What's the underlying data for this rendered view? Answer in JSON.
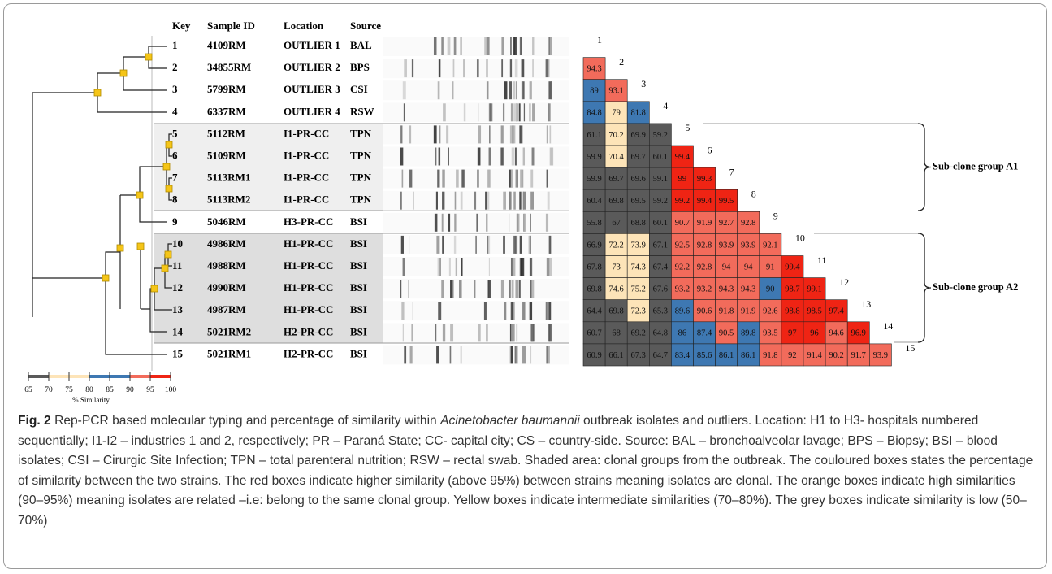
{
  "table": {
    "headers": [
      "Key",
      "Sample ID",
      "Location",
      "Source"
    ],
    "rows": [
      [
        "1",
        "4109RM",
        "OUTLIER 1",
        "BAL"
      ],
      [
        "2",
        "34855RM",
        "OUTLIER 2",
        "BPS"
      ],
      [
        "3",
        "5799RM",
        "OUTLIER 3",
        "CSI"
      ],
      [
        "4",
        "6337RM",
        "OUTLIER 4",
        "RSW"
      ],
      [
        "5",
        "5112RM",
        "I1-PR-CC",
        "TPN"
      ],
      [
        "6",
        "5109RM",
        "I1-PR-CC",
        "TPN"
      ],
      [
        "7",
        "5113RM1",
        "I1-PR-CC",
        "TPN"
      ],
      [
        "8",
        "5113RM2",
        "I1-PR-CC",
        "TPN"
      ],
      [
        "9",
        "5046RM",
        "H3-PR-CC",
        "BSI"
      ],
      [
        "10",
        "4986RM",
        "H1-PR-CC",
        "BSI"
      ],
      [
        "11",
        "4988RM",
        "H1-PR-CC",
        "BSI"
      ],
      [
        "12",
        "4990RM",
        "H1-PR-CC",
        "BSI"
      ],
      [
        "13",
        "4987RM",
        "H1-PR-CC",
        "BSI"
      ],
      [
        "14",
        "5021RM2",
        "H2-PR-CC",
        "BSI"
      ],
      [
        "15",
        "5021RM1",
        "H2-PR-CC",
        "BSI"
      ]
    ]
  },
  "similarity": {
    "rows": [
      [
        94.3
      ],
      [
        89,
        93.1
      ],
      [
        84.8,
        79,
        81.8
      ],
      [
        61.1,
        70.2,
        69.9,
        59.2
      ],
      [
        59.9,
        70.4,
        69.7,
        60.1,
        99.4
      ],
      [
        59.9,
        69.7,
        69.6,
        59.1,
        99,
        99.3
      ],
      [
        60.4,
        69.8,
        69.5,
        59.2,
        99.2,
        99.4,
        99.5
      ],
      [
        55.8,
        67,
        68.8,
        60.1,
        90.7,
        91.9,
        92.7,
        92.8
      ],
      [
        66.9,
        72.2,
        73.9,
        67.1,
        92.5,
        92.8,
        93.9,
        93.9,
        92.1
      ],
      [
        67.8,
        73,
        74.3,
        67.4,
        92.2,
        92.8,
        94,
        94,
        91,
        99.4
      ],
      [
        69.8,
        74.6,
        75.2,
        67.6,
        93.2,
        93.2,
        94.3,
        94.3,
        90,
        98.7,
        99.1
      ],
      [
        64.4,
        69.8,
        72.3,
        65.3,
        89.6,
        90.6,
        91.8,
        91.9,
        92.6,
        98.8,
        98.5,
        97.4
      ],
      [
        60.7,
        68,
        69.2,
        64.8,
        86,
        87.4,
        90.5,
        89.8,
        93.5,
        97,
        96,
        94.6,
        96.9
      ],
      [
        60.9,
        66.1,
        67.3,
        64.7,
        83.4,
        85.6,
        86.1,
        86.1,
        91.8,
        92,
        91.4,
        90.2,
        91.7,
        93.9
      ]
    ]
  },
  "groups": [
    "Sub-clone group A1",
    "Sub-clone group A2"
  ],
  "scale": {
    "ticks": [
      65,
      70,
      75,
      80,
      85,
      90,
      95,
      100
    ],
    "colors": [
      "#5a5a5a",
      "#fde4b8",
      "#fde4b8",
      "#3e78b2",
      "#3e78b2",
      "#f26b5b",
      "#ef2414"
    ],
    "label": "% Similarity"
  },
  "caption": {
    "label": "Fig. 2",
    "before": "Rep-PCR based molecular typing and percentage of similarity within ",
    "species": "Acinetobacter baumannii",
    "after": " outbreak isolates and outliers. Location: H1 to H3- hospitals numbered sequentially; I1-I2 – industries 1 and 2, respectively; PR – Paraná State; CC- capital city; CS – country-side. Source: BAL – bronchoalveolar lavage; BPS – Biopsy; BSI – blood isolates; CSI – Cirurgic Site Infection; TPN – total parenteral nutrition; RSW – rectal swab. Shaded area: clonal groups from the outbreak. The couloured boxes states the percentage of similarity between the two strains. The red boxes indicate higher similarity (above 95%) between strains meaning isolates are clonal. The orange boxes indicate high similarities (90–95%) meaning isolates are related –i.e: belong to the same clonal group. Yellow boxes indicate intermediate similarities (70–80%). The grey boxes indicate similarity is low (50–70%)"
  }
}
